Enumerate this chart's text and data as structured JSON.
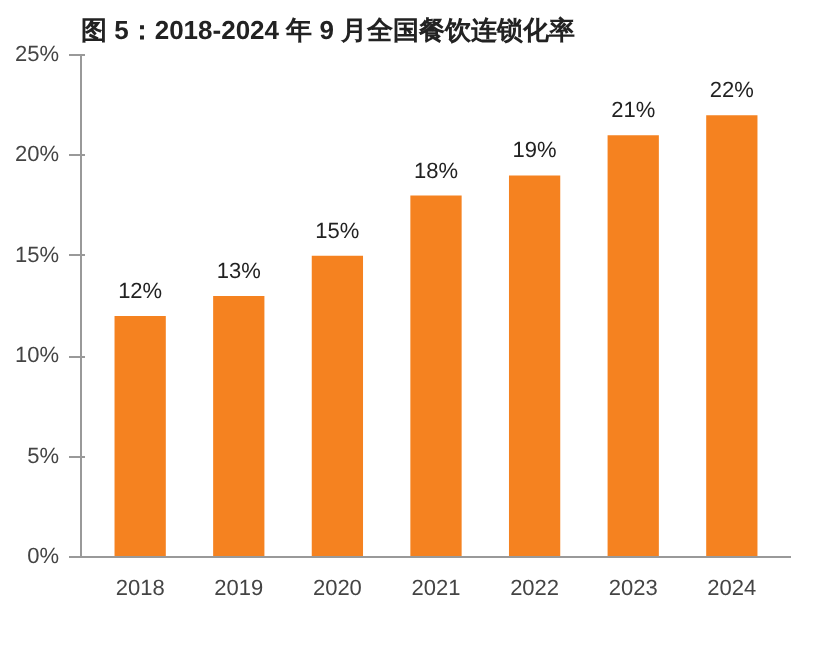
{
  "chart_data": {
    "type": "bar",
    "title": "图 5：2018-2024 年 9 月全国餐饮连锁化率",
    "categories": [
      "2018",
      "2019",
      "2020",
      "2021",
      "2022",
      "2023",
      "2024"
    ],
    "values": [
      12,
      13,
      15,
      18,
      19,
      21,
      22
    ],
    "value_labels": [
      "12%",
      "13%",
      "15%",
      "18%",
      "19%",
      "21%",
      "22%"
    ],
    "color": "#f58220",
    "ylim": [
      0,
      25
    ],
    "yticks": [
      {
        "value": 0,
        "label": "0%"
      },
      {
        "value": 5,
        "label": "5%"
      },
      {
        "value": 10,
        "label": "10%"
      },
      {
        "value": 15,
        "label": "15%"
      },
      {
        "value": 20,
        "label": "20%"
      },
      {
        "value": 25,
        "label": "25%"
      }
    ],
    "grid": false
  }
}
